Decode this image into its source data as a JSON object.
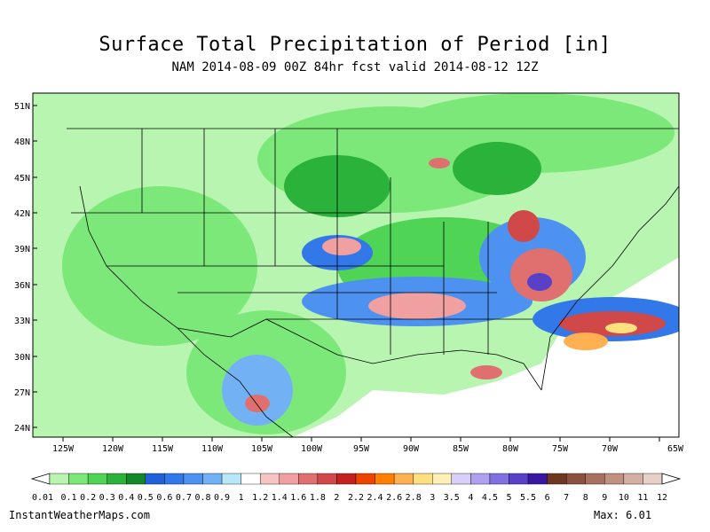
{
  "header": {
    "title": "Surface Total Precipitation of Period [in]",
    "subtitle": "NAM 2014-08-09 00Z 84hr fcst valid 2014-08-12 12Z"
  },
  "map": {
    "lat_labels": [
      "51N",
      "48N",
      "45N",
      "42N",
      "39N",
      "36N",
      "33N",
      "30N",
      "27N",
      "24N"
    ],
    "lon_labels": [
      "125W",
      "120W",
      "115W",
      "110W",
      "105W",
      "100W",
      "95W",
      "90W",
      "85W",
      "80W",
      "75W",
      "70W",
      "65W"
    ]
  },
  "legend": {
    "labels": [
      "0.01",
      "0.1",
      "0.2",
      "0.3",
      "0.4",
      "0.5",
      "0.6",
      "0.7",
      "0.8",
      "0.9",
      "1",
      "1.2",
      "1.4",
      "1.6",
      "1.8",
      "2",
      "2.2",
      "2.4",
      "2.6",
      "2.8",
      "3",
      "3.5",
      "4",
      "4.5",
      "5",
      "5.5",
      "6",
      "7",
      "8",
      "9",
      "10",
      "11",
      "12"
    ],
    "colors": [
      "#b7f5b0",
      "#7ce87a",
      "#4fd455",
      "#2bb23a",
      "#11882a",
      "#2160d8",
      "#3378e8",
      "#4d92f0",
      "#72b2f4",
      "#b8e8f8",
      "#ffffff",
      "#f7c4c4",
      "#f0a0a0",
      "#e07070",
      "#d04848",
      "#c42020",
      "#ee4400",
      "#ff8000",
      "#ffb050",
      "#ffe080",
      "#fff0b8",
      "#d8d0f8",
      "#b0a0f0",
      "#8070e0",
      "#5840c8",
      "#3818a0",
      "#6e3820",
      "#8c5040",
      "#a87060",
      "#c09080",
      "#d4b0a4",
      "#e8d0c8"
    ]
  },
  "footer": {
    "site": "InstantWeatherMaps.com",
    "max_label": "Max:",
    "max_value": "6.01"
  }
}
